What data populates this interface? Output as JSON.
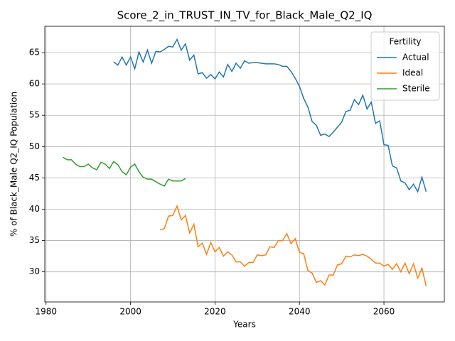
{
  "chart_data": {
    "type": "line",
    "title": "Score_2_in_TRUST_IN_TV_for_Black_Male_Q2_IQ",
    "xlabel": "Years",
    "ylabel": "% of Black_Male Q2_IQ Population",
    "legend_title": "Fertility",
    "legend": "upper right",
    "grid": true,
    "xlim": [
      1979.7,
      2074.3
    ],
    "ylim": [
      25.2,
      69.2
    ],
    "xticks": [
      1980,
      2000,
      2020,
      2040,
      2060
    ],
    "yticks": [
      30,
      35,
      40,
      45,
      50,
      55,
      60,
      65
    ],
    "x": [
      1984,
      1985,
      1986,
      1987,
      1988,
      1989,
      1990,
      1991,
      1992,
      1993,
      1994,
      1995,
      1996,
      1997,
      1998,
      1999,
      2000,
      2001,
      2002,
      2003,
      2004,
      2005,
      2006,
      2007,
      2008,
      2009,
      2010,
      2011,
      2012,
      2013,
      2014,
      2015,
      2016,
      2017,
      2018,
      2019,
      2020,
      2021,
      2022,
      2023,
      2024,
      2025,
      2026,
      2027,
      2028,
      2029,
      2030,
      2031,
      2032,
      2033,
      2034,
      2035,
      2036,
      2037,
      2038,
      2039,
      2040,
      2041,
      2042,
      2043,
      2044,
      2045,
      2046,
      2047,
      2048,
      2049,
      2050,
      2051,
      2052,
      2053,
      2054,
      2055,
      2056,
      2057,
      2058,
      2059,
      2060,
      2061,
      2062,
      2063,
      2064,
      2065,
      2066,
      2067,
      2068,
      2069,
      2070
    ],
    "series": [
      {
        "name": "Actual",
        "color": "#1f77b4",
        "values": [
          null,
          null,
          null,
          null,
          null,
          null,
          null,
          null,
          null,
          null,
          null,
          null,
          63.5,
          63.0,
          64.3,
          63.0,
          64.3,
          62.4,
          65.1,
          63.5,
          65.4,
          63.3,
          65.2,
          65.1,
          65.5,
          66.0,
          65.9,
          67.1,
          65.4,
          66.4,
          63.8,
          64.6,
          61.6,
          61.8,
          60.9,
          61.5,
          60.8,
          61.9,
          61.1,
          63.1,
          62.0,
          63.3,
          62.5,
          63.7,
          63.3,
          63.4,
          63.4,
          63.3,
          63.2,
          63.2,
          63.2,
          63.1,
          62.8,
          62.8,
          62.0,
          60.9,
          59.6,
          57.7,
          56.3,
          54.0,
          53.4,
          51.8,
          52.0,
          51.6,
          52.3,
          53.1,
          53.9,
          55.6,
          55.8,
          57.5,
          56.7,
          58.2,
          56.0,
          57.1,
          53.7,
          54.1,
          50.3,
          50.2,
          46.9,
          46.6,
          44.5,
          44.2,
          43.1,
          44.0,
          42.8,
          45.1,
          42.8
        ]
      },
      {
        "name": "Ideal",
        "color": "#ff7f0e",
        "values": [
          null,
          null,
          null,
          null,
          null,
          null,
          null,
          null,
          null,
          null,
          null,
          null,
          null,
          null,
          null,
          null,
          null,
          null,
          null,
          null,
          null,
          null,
          null,
          36.7,
          36.9,
          38.9,
          39.0,
          40.5,
          38.3,
          39.0,
          36.2,
          37.6,
          34.0,
          34.6,
          32.8,
          34.7,
          33.2,
          33.9,
          32.5,
          33.2,
          32.7,
          31.6,
          31.6,
          30.9,
          31.5,
          31.5,
          32.7,
          32.6,
          32.7,
          34.0,
          33.9,
          35.0,
          35.0,
          36.1,
          34.5,
          35.3,
          33.1,
          32.9,
          30.2,
          29.8,
          28.3,
          28.6,
          27.9,
          29.5,
          29.5,
          31.1,
          31.3,
          32.5,
          32.4,
          32.7,
          32.6,
          32.8,
          32.5,
          32.0,
          31.4,
          31.4,
          30.9,
          31.2,
          30.4,
          31.3,
          30.0,
          31.4,
          29.7,
          31.3,
          29.0,
          30.6,
          27.7
        ]
      },
      {
        "name": "Sterile",
        "color": "#2ca02c",
        "values": [
          48.3,
          47.9,
          47.9,
          47.2,
          46.8,
          46.8,
          47.2,
          46.6,
          46.3,
          47.5,
          47.2,
          46.5,
          47.6,
          47.1,
          46.0,
          45.5,
          46.7,
          47.2,
          46.0,
          45.1,
          44.8,
          44.8,
          44.4,
          44.0,
          43.7,
          44.8,
          44.5,
          44.5,
          44.5,
          44.9,
          null,
          null,
          null,
          null,
          null,
          null,
          null,
          null,
          null,
          null,
          null,
          null,
          null,
          null,
          null,
          null,
          null,
          null,
          null,
          null,
          null,
          null,
          null,
          null,
          null,
          null,
          null,
          null,
          null,
          null,
          null,
          null,
          null,
          null,
          null,
          null,
          null,
          null,
          null,
          null,
          null,
          null,
          null,
          null,
          null,
          null,
          null,
          null,
          null,
          null,
          null,
          null,
          null,
          null,
          null,
          null,
          null
        ]
      }
    ]
  }
}
